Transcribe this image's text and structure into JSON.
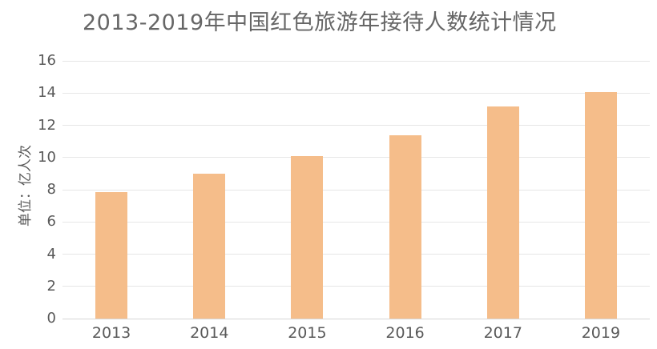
{
  "chart_data": {
    "type": "bar",
    "title": "2013-2019年中国红色旅游年接待人数统计情况",
    "ylabel": "单位：亿人次",
    "xlabel": "",
    "categories": [
      "2013",
      "2014",
      "2015",
      "2016",
      "2017",
      "2019"
    ],
    "values": [
      7.85,
      9.0,
      10.1,
      11.4,
      13.15,
      14.05
    ],
    "ylim": [
      0,
      16
    ],
    "ytick_step": 2,
    "yticks": [
      0,
      2,
      4,
      6,
      8,
      10,
      12,
      14,
      16
    ],
    "grid": true,
    "legend": false
  },
  "colors": {
    "background": "#ffffff",
    "bar": "#f5bd8a",
    "title_text": "#666666",
    "axis_text": "#595959",
    "gridline": "#e6e6e6",
    "baseline": "#d6d6d6"
  }
}
